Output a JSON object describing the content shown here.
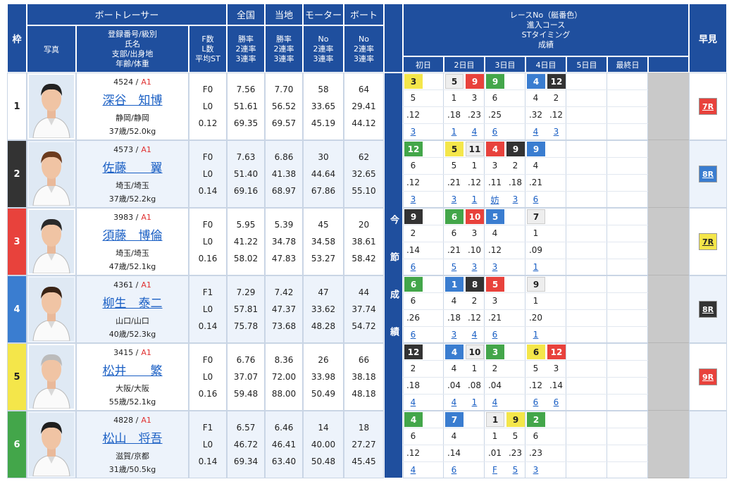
{
  "header": {
    "frame": "枠",
    "racer": "ボートレーサー",
    "national": "全国",
    "local": "当地",
    "motor": "モーター",
    "boat": "ボート",
    "photo": "写真",
    "racer_sub": [
      "登録番号/級別",
      "氏名",
      "支部/出身地",
      "年齢/体重"
    ],
    "fl_sub": [
      "F数",
      "L数",
      "平均ST"
    ],
    "national_sub": [
      "勝率",
      "2連率",
      "3連率"
    ],
    "local_sub": [
      "勝率",
      "2連率",
      "3連率"
    ],
    "motor_sub": [
      "No",
      "2連率",
      "3連率"
    ],
    "boat_sub": [
      "No",
      "2連率",
      "3連率"
    ],
    "series_title": [
      "レースNo（艇番色）",
      "進入コース",
      "STタイミング",
      "成績"
    ],
    "days": [
      "初日",
      "2日目",
      "3日目",
      "4日目",
      "5日目",
      "最終日"
    ],
    "quick": "早見",
    "current": "今節成績"
  },
  "racers": [
    {
      "frame": "1",
      "color": "#ffffff",
      "reg": "4524 /",
      "class": "A1",
      "name": "深谷　知博",
      "area": "静岡/静岡",
      "age_weight": "37歳/52.0kg",
      "fl": [
        "F0",
        "L0",
        "0.12"
      ],
      "national": [
        "7.56",
        "51.61",
        "69.35"
      ],
      "local": [
        "7.70",
        "56.52",
        "69.57"
      ],
      "motor": [
        "58",
        "33.65",
        "45.19"
      ],
      "boat": [
        "64",
        "29.41",
        "44.12"
      ],
      "days": [
        [
          {
            "race": "3",
            "color": "#f4e64a",
            "course": "5",
            "st": ".12",
            "result": "3"
          }
        ],
        [
          {
            "race": "5",
            "color": "#eeeeee",
            "course": "1",
            "st": ".18",
            "result": "1"
          },
          {
            "race": "9",
            "color": "#e8423c",
            "course": "3",
            "st": ".23",
            "result": "4"
          }
        ],
        [
          {
            "race": "9",
            "color": "#43a64a",
            "course": "6",
            "st": ".25",
            "result": "6"
          }
        ],
        [
          {
            "race": "4",
            "color": "#3a7dd0",
            "course": "4",
            "st": ".32",
            "result": "4"
          },
          {
            "race": "12",
            "color": "#333333",
            "course": "2",
            "st": ".12",
            "result": "3"
          }
        ],
        [],
        []
      ],
      "quick": "7R",
      "quick_color": "#e8423c"
    },
    {
      "frame": "2",
      "color": "#333333",
      "reg": "4573 /",
      "class": "A1",
      "name": "佐藤　　翼",
      "area": "埼玉/埼玉",
      "age_weight": "37歳/52.2kg",
      "fl": [
        "F0",
        "L0",
        "0.14"
      ],
      "national": [
        "7.63",
        "51.40",
        "69.16"
      ],
      "local": [
        "6.86",
        "41.38",
        "68.97"
      ],
      "motor": [
        "30",
        "44.64",
        "67.86"
      ],
      "boat": [
        "62",
        "32.65",
        "55.10"
      ],
      "days": [
        [
          {
            "race": "12",
            "color": "#43a64a",
            "course": "6",
            "st": ".12",
            "result": "3"
          }
        ],
        [
          {
            "race": "5",
            "color": "#f4e64a",
            "course": "5",
            "st": ".21",
            "result": "3"
          },
          {
            "race": "11",
            "color": "#eeeeee",
            "course": "1",
            "st": ".12",
            "result": "1"
          }
        ],
        [
          {
            "race": "4",
            "color": "#e8423c",
            "course": "3",
            "st": ".11",
            "result": "妨"
          },
          {
            "race": "9",
            "color": "#333333",
            "course": "2",
            "st": ".18",
            "result": "3"
          }
        ],
        [
          {
            "race": "9",
            "color": "#3a7dd0",
            "course": "4",
            "st": ".21",
            "result": "6"
          }
        ],
        [],
        []
      ],
      "quick": "8R",
      "quick_color": "#3a7dd0"
    },
    {
      "frame": "3",
      "color": "#e8423c",
      "reg": "3983 /",
      "class": "A1",
      "name": "須藤　博倫",
      "area": "埼玉/埼玉",
      "age_weight": "47歳/52.1kg",
      "fl": [
        "F0",
        "L0",
        "0.16"
      ],
      "national": [
        "5.95",
        "41.22",
        "58.02"
      ],
      "local": [
        "5.39",
        "34.78",
        "47.83"
      ],
      "motor": [
        "45",
        "34.58",
        "53.27"
      ],
      "boat": [
        "20",
        "38.61",
        "58.42"
      ],
      "days": [
        [
          {
            "race": "9",
            "color": "#333333",
            "course": "2",
            "st": ".14",
            "result": "6"
          }
        ],
        [
          {
            "race": "6",
            "color": "#43a64a",
            "course": "6",
            "st": ".21",
            "result": "5"
          },
          {
            "race": "10",
            "color": "#e8423c",
            "course": "3",
            "st": ".10",
            "result": "3"
          }
        ],
        [
          {
            "race": "5",
            "color": "#3a7dd0",
            "course": "4",
            "st": ".12",
            "result": "3"
          }
        ],
        [
          {
            "race": "7",
            "color": "#eeeeee",
            "course": "1",
            "st": ".09",
            "result": "1"
          }
        ],
        [],
        []
      ],
      "quick": "7R",
      "quick_color": "#f4e64a"
    },
    {
      "frame": "4",
      "color": "#3a7dd0",
      "reg": "4361 /",
      "class": "A1",
      "name": "柳生　泰二",
      "area": "山口/山口",
      "age_weight": "40歳/52.3kg",
      "fl": [
        "F1",
        "L0",
        "0.14"
      ],
      "national": [
        "7.29",
        "57.81",
        "75.78"
      ],
      "local": [
        "7.42",
        "47.37",
        "73.68"
      ],
      "motor": [
        "47",
        "33.62",
        "48.28"
      ],
      "boat": [
        "44",
        "37.74",
        "54.72"
      ],
      "days": [
        [
          {
            "race": "6",
            "color": "#43a64a",
            "course": "6",
            "st": ".26",
            "result": "6"
          }
        ],
        [
          {
            "race": "1",
            "color": "#3a7dd0",
            "course": "4",
            "st": ".18",
            "result": "3"
          },
          {
            "race": "8",
            "color": "#333333",
            "course": "2",
            "st": ".12",
            "result": "4"
          }
        ],
        [
          {
            "race": "5",
            "color": "#e8423c",
            "course": "3",
            "st": ".21",
            "result": "6"
          }
        ],
        [
          {
            "race": "9",
            "color": "#eeeeee",
            "course": "1",
            "st": ".20",
            "result": "1"
          }
        ],
        [],
        []
      ],
      "quick": "8R",
      "quick_color": "#333333"
    },
    {
      "frame": "5",
      "color": "#f4e64a",
      "reg": "3415 /",
      "class": "A1",
      "name": "松井　　繁",
      "area": "大阪/大阪",
      "age_weight": "55歳/52.1kg",
      "fl": [
        "F0",
        "L0",
        "0.16"
      ],
      "national": [
        "6.76",
        "37.07",
        "59.48"
      ],
      "local": [
        "8.36",
        "72.00",
        "88.00"
      ],
      "motor": [
        "26",
        "33.98",
        "50.49"
      ],
      "boat": [
        "66",
        "38.18",
        "48.18"
      ],
      "days": [
        [
          {
            "race": "12",
            "color": "#333333",
            "course": "2",
            "st": ".18",
            "result": "4"
          }
        ],
        [
          {
            "race": "4",
            "color": "#3a7dd0",
            "course": "4",
            "st": ".04",
            "result": "4"
          },
          {
            "race": "10",
            "color": "#eeeeee",
            "course": "1",
            "st": ".08",
            "result": "1"
          }
        ],
        [
          {
            "race": "3",
            "color": "#43a64a",
            "course": "2",
            "st": ".04",
            "result": "4"
          }
        ],
        [
          {
            "race": "6",
            "color": "#f4e64a",
            "course": "5",
            "st": ".12",
            "result": "6"
          },
          {
            "race": "12",
            "color": "#e8423c",
            "course": "3",
            "st": ".14",
            "result": "6"
          }
        ],
        [],
        []
      ],
      "quick": "9R",
      "quick_color": "#e8423c"
    },
    {
      "frame": "6",
      "color": "#43a64a",
      "reg": "4828 /",
      "class": "A1",
      "name": "松山　将吾",
      "area": "滋賀/京都",
      "age_weight": "31歳/50.5kg",
      "fl": [
        "F1",
        "L0",
        "0.14"
      ],
      "national": [
        "6.57",
        "46.72",
        "69.34"
      ],
      "local": [
        "6.46",
        "46.41",
        "63.40"
      ],
      "motor": [
        "14",
        "40.00",
        "50.48"
      ],
      "boat": [
        "18",
        "27.27",
        "45.45"
      ],
      "days": [
        [
          {
            "race": "4",
            "color": "#43a64a",
            "course": "6",
            "st": ".12",
            "result": "4"
          }
        ],
        [
          {
            "race": "7",
            "color": "#3a7dd0",
            "course": "4",
            "st": ".14",
            "result": "6"
          }
        ],
        [
          {
            "race": "1",
            "color": "#eeeeee",
            "course": "1",
            "st": ".01",
            "result": "F"
          },
          {
            "race": "9",
            "color": "#f4e64a",
            "course": "5",
            "st": ".23",
            "result": "5"
          }
        ],
        [
          {
            "race": "2",
            "color": "#43a64a",
            "course": "6",
            "st": ".23",
            "result": "3"
          }
        ],
        [],
        []
      ]
    }
  ]
}
